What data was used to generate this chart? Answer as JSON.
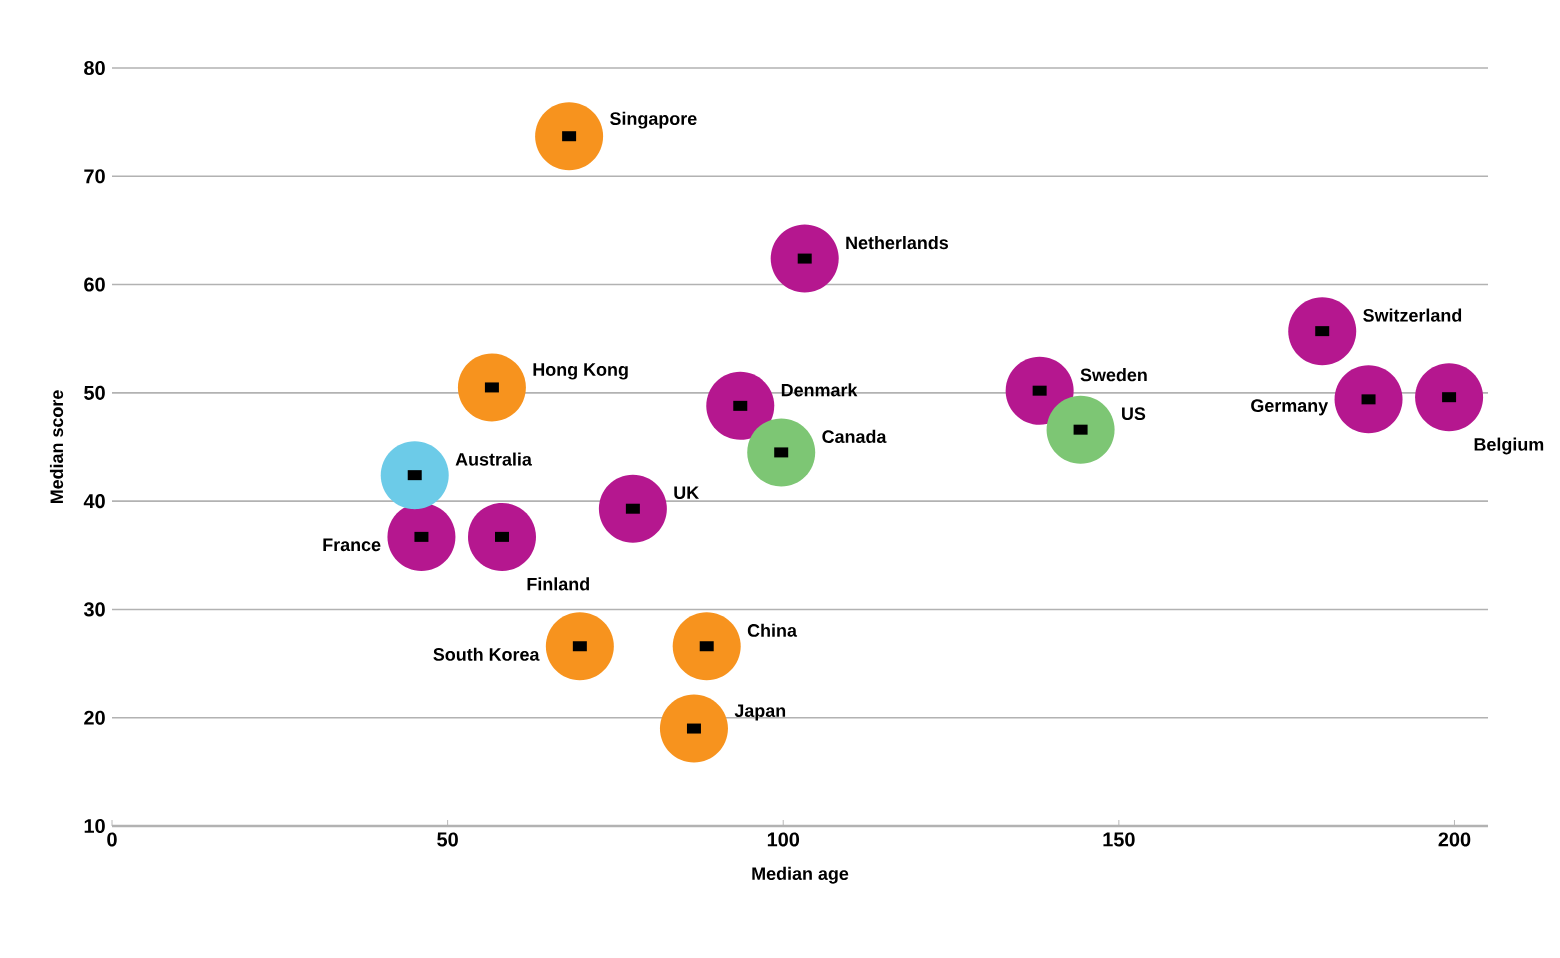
{
  "chart_data": {
    "type": "scatter",
    "xlabel": "Median age",
    "ylabel": "Median score",
    "xlim": [
      0,
      205
    ],
    "ylim": [
      10,
      80
    ],
    "xticks": [
      0,
      50,
      100,
      150,
      200
    ],
    "yticks": [
      10,
      20,
      30,
      40,
      50,
      60,
      70,
      80
    ],
    "grid": "y",
    "marker": "circle",
    "series": [
      {
        "color": "#f7931e",
        "x": [
          68.1,
          56.6,
          69.7,
          88.6,
          86.7
        ],
        "values": [
          73.7,
          50.5,
          26.6,
          26.6,
          19.0
        ]
      },
      {
        "color": "#b5178f",
        "x": [
          103.2,
          93.6,
          77.6,
          46.1,
          58.1,
          138.2,
          180.3,
          187.2,
          199.2
        ],
        "values": [
          62.4,
          48.8,
          39.3,
          36.7,
          36.7,
          50.2,
          55.7,
          49.4,
          49.6
        ]
      },
      {
        "color": "#6ccbe8",
        "x": [
          45.1
        ],
        "values": [
          42.4
        ]
      },
      {
        "color": "#7dc674",
        "x": [
          99.7,
          144.3
        ],
        "values": [
          44.5,
          46.6
        ]
      }
    ],
    "annotations": [
      {
        "text": "Singapore",
        "x": 68.1,
        "y": 73.7
      },
      {
        "text": "Netherlands",
        "x": 103.2,
        "y": 62.4
      },
      {
        "text": "Hong Kong",
        "x": 56.6,
        "y": 50.5
      },
      {
        "text": "Denmark",
        "x": 93.6,
        "y": 48.8
      },
      {
        "text": "Sweden",
        "x": 138.2,
        "y": 50.2
      },
      {
        "text": "Switzerland",
        "x": 180.3,
        "y": 55.7
      },
      {
        "text": "Australia",
        "x": 45.1,
        "y": 42.4
      },
      {
        "text": "Canada",
        "x": 99.7,
        "y": 44.5
      },
      {
        "text": "US",
        "x": 144.3,
        "y": 46.6
      },
      {
        "text": "Germany",
        "x": 187.2,
        "y": 49.4
      },
      {
        "text": "Belgium",
        "x": 199.2,
        "y": 49.6
      },
      {
        "text": "UK",
        "x": 77.6,
        "y": 39.3
      },
      {
        "text": "France",
        "x": 46.1,
        "y": 36.7
      },
      {
        "text": "Finland",
        "x": 58.1,
        "y": 36.7
      },
      {
        "text": "South Korea",
        "x": 69.7,
        "y": 26.6
      },
      {
        "text": "China",
        "x": 88.6,
        "y": 26.6
      },
      {
        "text": "Japan",
        "x": 86.7,
        "y": 19.0
      }
    ]
  }
}
